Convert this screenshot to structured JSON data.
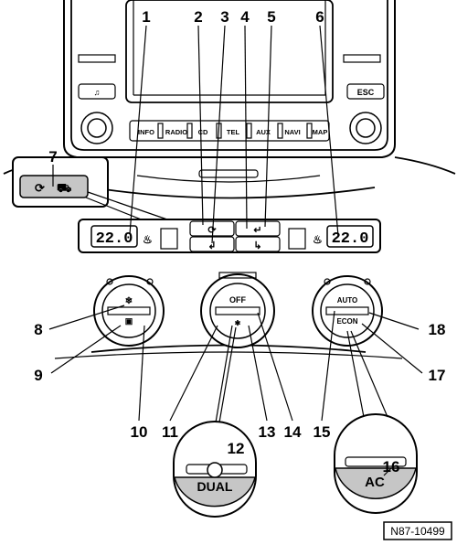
{
  "callouts": [
    "1",
    "2",
    "3",
    "4",
    "5",
    "6",
    "7",
    "8",
    "9",
    "10",
    "11",
    "12",
    "13",
    "14",
    "15",
    "16",
    "17",
    "18"
  ],
  "radio": {
    "buttons": [
      "INFO",
      "RADIO",
      "CD",
      "TEL",
      "AUX",
      "NAVI",
      "MAP"
    ],
    "left_top_button": "♫",
    "right_top_button": "ESC"
  },
  "displays": {
    "left_temp": "22.0",
    "right_temp": "22.0"
  },
  "knob_labels": {
    "off": "OFF",
    "auto": "AUTO",
    "econ": "ECON"
  },
  "insets": {
    "dual": "DUAL",
    "ac": "AC"
  },
  "figure_ref": "N87-10499",
  "colors": {
    "line": "#000000",
    "fill": "#ffffff",
    "shade": "#c6c6c6"
  }
}
